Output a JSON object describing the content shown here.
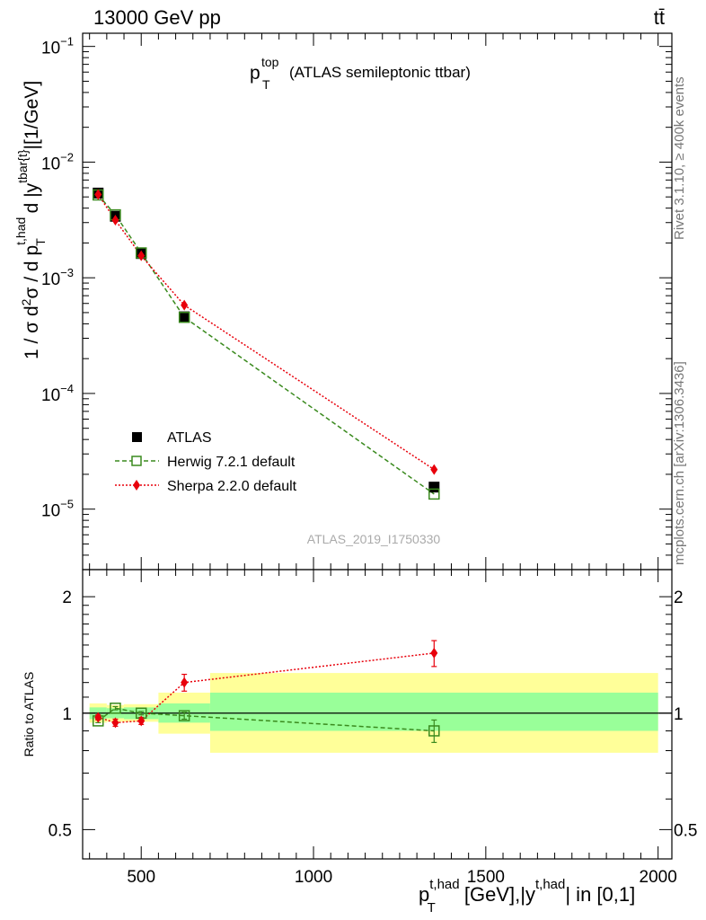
{
  "header": {
    "energy": "13000 GeV pp",
    "process": "tt̄"
  },
  "title": {
    "main": "p",
    "sup": "top",
    "sub": "T",
    "rest": "(ATLAS semileptonic ttbar)"
  },
  "watermark": "ATLAS_2019_I1750330",
  "side_labels": {
    "rivet": "Rivet 3.1.10, ≥ 400k events",
    "mcplots": "mcplots.cern.ch [arXiv:1306.3436]"
  },
  "ylabel_main": "1 / σ d²σ / d p_T^{t,had} d |y^{tbar{t}}|[1/GeV]",
  "ylabel_ratio": "Ratio to ATLAS",
  "xlabel": "p_T^{t,had} [GeV],|y^{t,had}| in [0,1]",
  "colors": {
    "data": "#000000",
    "herwig": "#3a8a1e",
    "sherpa": "#e8000b",
    "band_inner": "#99ff99",
    "band_outer": "#ffff99"
  },
  "chart_data": [
    {
      "type": "scatter",
      "panel": "main",
      "yscale": "log",
      "xlim": [
        330,
        2040
      ],
      "ylim": [
        3e-06,
        0.13
      ],
      "yticks": [
        1e-05,
        0.0001,
        0.001,
        0.01,
        0.1
      ],
      "ytick_labels": [
        "10^{-5}",
        "10^{-4}",
        "10^{-3}",
        "10^{-2}",
        "10^{-1}"
      ],
      "legend_position": "lower-left",
      "series": [
        {
          "name": "ATLAS",
          "style": "filled-square",
          "x": [
            375,
            425,
            500,
            625,
            1350
          ],
          "y": [
            0.0054,
            0.0034,
            0.00162,
            0.00046,
            1.55e-05
          ]
        },
        {
          "name": "Herwig 7.2.1 default",
          "style": "open-square-dashed",
          "x": [
            375,
            425,
            500,
            625,
            1350
          ],
          "y": [
            0.0052,
            0.0035,
            0.00164,
            0.000455,
            1.35e-05
          ]
        },
        {
          "name": "Sherpa 2.2.0 default",
          "style": "diamond-dotted",
          "x": [
            375,
            425,
            500,
            625,
            1350
          ],
          "y": [
            0.00525,
            0.00315,
            0.00155,
            0.00058,
            2.2e-05
          ]
        }
      ]
    },
    {
      "type": "scatter",
      "panel": "ratio",
      "xlim": [
        330,
        2040
      ],
      "ylim": [
        0.42,
        2.35
      ],
      "yscale": "log",
      "yticks": [
        0.5,
        1,
        2
      ],
      "ytick_labels": [
        "0.5",
        "1",
        "2"
      ],
      "xticks": [
        500,
        1000,
        1500,
        2000
      ],
      "xtick_labels": [
        "500",
        "1000",
        "1500",
        "2000"
      ],
      "uncertainty_bins": [
        {
          "x": [
            350,
            400
          ],
          "inner": [
            0.965,
            1.035
          ],
          "outer": [
            0.945,
            1.06
          ]
        },
        {
          "x": [
            400,
            450
          ],
          "inner": [
            0.97,
            1.03
          ],
          "outer": [
            0.95,
            1.05
          ]
        },
        {
          "x": [
            450,
            550
          ],
          "inner": [
            0.965,
            1.035
          ],
          "outer": [
            0.95,
            1.055
          ]
        },
        {
          "x": [
            550,
            700
          ],
          "inner": [
            0.945,
            1.06
          ],
          "outer": [
            0.885,
            1.13
          ]
        },
        {
          "x": [
            700,
            2000
          ],
          "inner": [
            0.9,
            1.13
          ],
          "outer": [
            0.79,
            1.27
          ]
        }
      ],
      "series": [
        {
          "name": "Herwig 7.2.1 default",
          "x": [
            375,
            425,
            500,
            625,
            1350
          ],
          "y": [
            0.955,
            1.03,
            1.0,
            0.985,
            0.9
          ],
          "err": [
            0.01,
            0.01,
            0.01,
            0.02,
            0.06
          ]
        },
        {
          "name": "Sherpa 2.2.0 default",
          "x": [
            375,
            425,
            500,
            625,
            1350
          ],
          "y": [
            0.975,
            0.945,
            0.955,
            1.2,
            1.43
          ],
          "err": [
            0.015,
            0.02,
            0.02,
            0.06,
            0.11
          ]
        }
      ]
    }
  ]
}
